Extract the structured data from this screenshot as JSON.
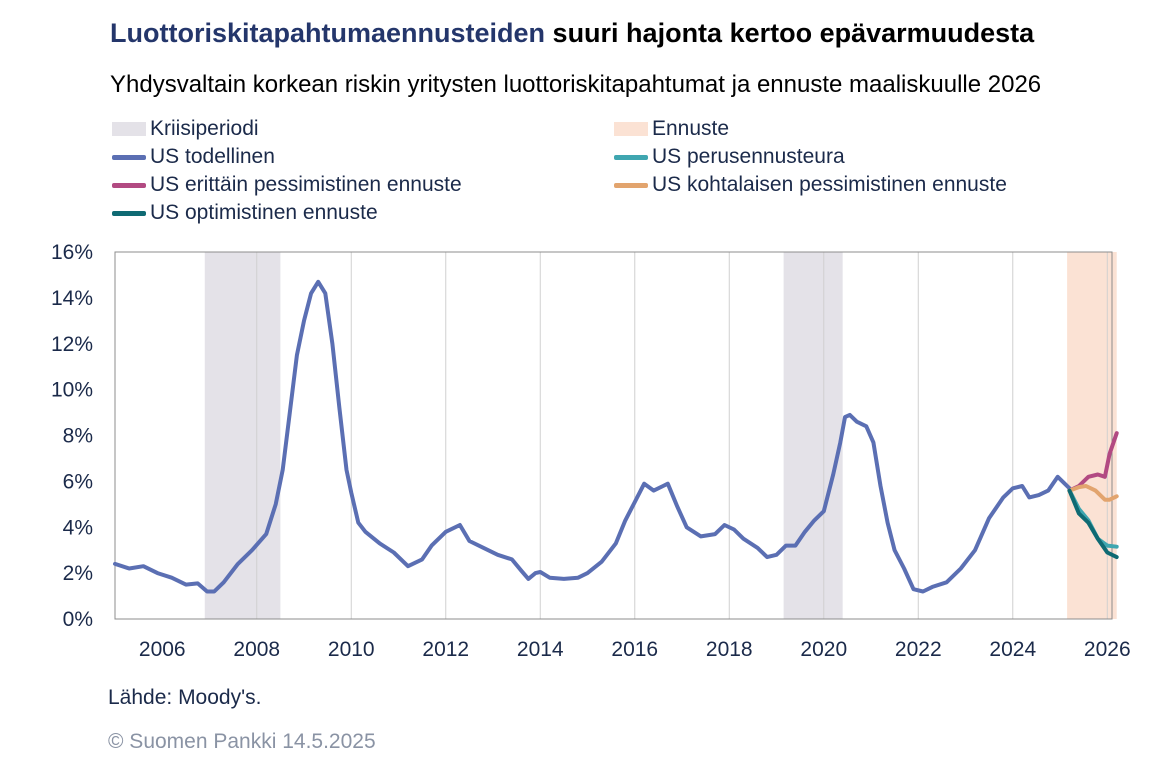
{
  "title_highlight": "Luottoriskitapahtumaennusteiden",
  "title_rest": " suuri hajonta kertoo epävarmuudesta",
  "subtitle": "Yhdysvaltain korkean riskin yritysten luottoriskitapahtumat ja ennuste maaliskuulle 2026",
  "source": "Lähde: Moody's.",
  "copyright": "© Suomen Pankki 14.5.2025",
  "colors": {
    "crisis": "#e4e2e8",
    "forecast_band": "#fbe2d4",
    "actual": "#5b6fb3",
    "baseline": "#3fa6b0",
    "severe": "#b24a82",
    "moderate": "#e2a46e",
    "optimistic": "#0f6a73"
  },
  "legend": [
    {
      "label": "Kriisiperiodi",
      "kind": "box",
      "color": "#e4e2e8"
    },
    {
      "label": "Ennuste",
      "kind": "box",
      "color": "#fbe2d4"
    },
    {
      "label": "US todellinen",
      "kind": "line",
      "color": "#5b6fb3"
    },
    {
      "label": "US perusennusteura",
      "kind": "line",
      "color": "#3fa6b0"
    },
    {
      "label": "US erittäin pessimistinen ennuste",
      "kind": "line",
      "color": "#b24a82"
    },
    {
      "label": "US kohtalaisen pessimistinen ennuste",
      "kind": "line",
      "color": "#e2a46e"
    },
    {
      "label": "US optimistinen ennuste",
      "kind": "line",
      "color": "#0f6a73"
    }
  ],
  "chart_data": {
    "type": "line",
    "xlim": [
      2006,
      2027.1
    ],
    "ylim": [
      0,
      16
    ],
    "x_ticks": [
      "2006",
      "2008",
      "2010",
      "2012",
      "2014",
      "2016",
      "2018",
      "2020",
      "2022",
      "2024",
      "2026"
    ],
    "y_ticks": [
      "0%",
      "2%",
      "4%",
      "6%",
      "8%",
      "10%",
      "12%",
      "14%",
      "16%"
    ],
    "grid": "vertical",
    "crisis_periods": [
      [
        2007.9,
        2009.5
      ],
      [
        2020.15,
        2021.4
      ]
    ],
    "forecast_period": [
      2025.15,
      2026.2
    ],
    "series": [
      {
        "name": "US todellinen",
        "points": [
          [
            2006.0,
            2.4
          ],
          [
            2006.3,
            2.2
          ],
          [
            2006.6,
            2.3
          ],
          [
            2006.9,
            2.0
          ],
          [
            2007.2,
            1.8
          ],
          [
            2007.5,
            1.5
          ],
          [
            2007.75,
            1.55
          ],
          [
            2007.95,
            1.2
          ],
          [
            2008.1,
            1.2
          ],
          [
            2008.3,
            1.6
          ],
          [
            2008.6,
            2.4
          ],
          [
            2008.9,
            3.0
          ],
          [
            2009.2,
            3.7
          ],
          [
            2009.4,
            5.0
          ],
          [
            2009.55,
            6.5
          ],
          [
            2009.7,
            9.0
          ],
          [
            2009.85,
            11.5
          ],
          [
            2010.0,
            13.0
          ],
          [
            2010.15,
            14.2
          ],
          [
            2010.3,
            14.7
          ],
          [
            2010.45,
            14.2
          ],
          [
            2010.6,
            12.0
          ],
          [
            2010.75,
            9.2
          ],
          [
            2010.9,
            6.5
          ],
          [
            2011.0,
            5.5
          ],
          [
            2011.15,
            4.2
          ],
          [
            2011.3,
            3.8
          ],
          [
            2011.6,
            3.3
          ],
          [
            2011.9,
            2.9
          ],
          [
            2012.2,
            2.3
          ],
          [
            2012.5,
            2.6
          ],
          [
            2012.7,
            3.2
          ],
          [
            2013.0,
            3.8
          ],
          [
            2013.3,
            4.1
          ],
          [
            2013.5,
            3.4
          ],
          [
            2013.8,
            3.1
          ],
          [
            2014.1,
            2.8
          ],
          [
            2014.4,
            2.6
          ],
          [
            2014.6,
            2.1
          ],
          [
            2014.75,
            1.75
          ],
          [
            2014.9,
            2.0
          ],
          [
            2015.0,
            2.05
          ],
          [
            2015.2,
            1.8
          ],
          [
            2015.5,
            1.75
          ],
          [
            2015.8,
            1.8
          ],
          [
            2016.0,
            2.0
          ],
          [
            2016.3,
            2.5
          ],
          [
            2016.6,
            3.3
          ],
          [
            2016.8,
            4.3
          ],
          [
            2017.0,
            5.1
          ],
          [
            2017.2,
            5.9
          ],
          [
            2017.4,
            5.6
          ],
          [
            2017.6,
            5.8
          ],
          [
            2017.7,
            5.9
          ],
          [
            2017.9,
            4.9
          ],
          [
            2018.1,
            4.0
          ],
          [
            2018.4,
            3.6
          ],
          [
            2018.7,
            3.7
          ],
          [
            2018.9,
            4.1
          ],
          [
            2019.1,
            3.9
          ],
          [
            2019.3,
            3.5
          ],
          [
            2019.6,
            3.1
          ],
          [
            2019.8,
            2.7
          ],
          [
            2020.0,
            2.8
          ],
          [
            2020.2,
            3.2
          ],
          [
            2020.4,
            3.2
          ],
          [
            2020.6,
            3.8
          ],
          [
            2020.8,
            4.3
          ],
          [
            2021.0,
            4.7
          ],
          [
            2021.2,
            6.3
          ],
          [
            2021.35,
            7.7
          ],
          [
            2021.45,
            8.8
          ],
          [
            2021.55,
            8.9
          ],
          [
            2021.7,
            8.6
          ],
          [
            2021.9,
            8.4
          ],
          [
            2022.05,
            7.7
          ],
          [
            2022.2,
            5.8
          ],
          [
            2022.35,
            4.2
          ],
          [
            2022.5,
            3.0
          ],
          [
            2022.7,
            2.2
          ],
          [
            2022.9,
            1.3
          ],
          [
            2023.1,
            1.2
          ],
          [
            2023.3,
            1.4
          ],
          [
            2023.6,
            1.6
          ],
          [
            2023.9,
            2.2
          ],
          [
            2024.2,
            3.0
          ],
          [
            2024.5,
            4.4
          ],
          [
            2024.8,
            5.3
          ],
          [
            2025.0,
            5.7
          ],
          [
            2025.2,
            5.8
          ],
          [
            2025.35,
            5.3
          ],
          [
            2025.55,
            5.4
          ],
          [
            2025.75,
            5.6
          ],
          [
            2025.95,
            6.2
          ],
          [
            2026.2,
            5.7
          ]
        ]
      },
      {
        "name": "US perusennusteura",
        "points": [
          [
            2026.2,
            5.6
          ],
          [
            2026.4,
            4.8
          ],
          [
            2026.6,
            4.3
          ],
          [
            2026.8,
            3.5
          ],
          [
            2027.0,
            3.2
          ],
          [
            2027.2,
            3.15
          ]
        ]
      },
      {
        "name": "US erittäin pessimistinen ennuste",
        "points": [
          [
            2026.2,
            5.6
          ],
          [
            2026.4,
            5.8
          ],
          [
            2026.6,
            6.2
          ],
          [
            2026.8,
            6.3
          ],
          [
            2026.95,
            6.2
          ],
          [
            2027.05,
            7.2
          ],
          [
            2027.2,
            8.1
          ]
        ]
      },
      {
        "name": "US kohtalaisen pessimistinen ennuste",
        "points": [
          [
            2026.2,
            5.6
          ],
          [
            2026.4,
            5.75
          ],
          [
            2026.55,
            5.8
          ],
          [
            2026.75,
            5.6
          ],
          [
            2026.95,
            5.2
          ],
          [
            2027.05,
            5.2
          ],
          [
            2027.2,
            5.35
          ]
        ]
      },
      {
        "name": "US optimistinen ennuste",
        "points": [
          [
            2026.2,
            5.6
          ],
          [
            2026.4,
            4.6
          ],
          [
            2026.6,
            4.2
          ],
          [
            2026.8,
            3.5
          ],
          [
            2027.0,
            2.9
          ],
          [
            2027.2,
            2.7
          ]
        ]
      }
    ]
  }
}
